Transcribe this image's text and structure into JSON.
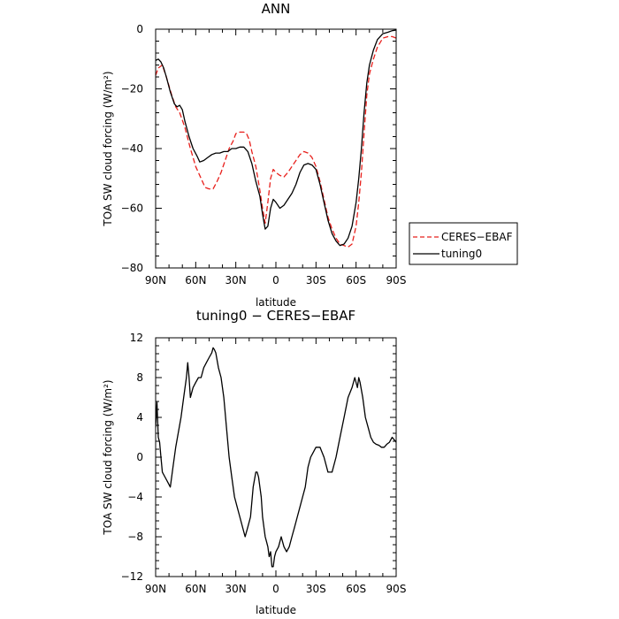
{
  "chart_data": [
    {
      "type": "line",
      "title": "ANN",
      "xlabel": "latitude",
      "ylabel": "TOA SW cloud forcing (W/m²)",
      "xlim": [
        90,
        -90
      ],
      "ylim": [
        -80,
        0
      ],
      "x_ticks": [
        90,
        60,
        30,
        0,
        -30,
        -60,
        -90
      ],
      "x_tick_labels": [
        "90N",
        "60N",
        "30N",
        "0",
        "30S",
        "60S",
        "90S"
      ],
      "y_ticks": [
        -80,
        -60,
        -40,
        -20,
        0
      ],
      "y_tick_labels": [
        "−80",
        "−60",
        "−40",
        "−20",
        "0"
      ],
      "grid": false,
      "legend_position": "outside-right-bottom",
      "series": [
        {
          "name": "CERES−EBAF",
          "color": "#e8201c",
          "dash": "dashed",
          "points": [
            [
              90,
              -15.5
            ],
            [
              88,
              -13
            ],
            [
              85,
              -12
            ],
            [
              82,
              -16
            ],
            [
              78,
              -22
            ],
            [
              75,
              -26
            ],
            [
              72,
              -28
            ],
            [
              68,
              -33
            ],
            [
              64,
              -40
            ],
            [
              60,
              -46
            ],
            [
              56,
              -50
            ],
            [
              53,
              -53
            ],
            [
              50,
              -53.5
            ],
            [
              47,
              -53.5
            ],
            [
              44,
              -51
            ],
            [
              41,
              -48
            ],
            [
              38,
              -44
            ],
            [
              35,
              -40
            ],
            [
              32,
              -37.5
            ],
            [
              30,
              -35
            ],
            [
              27,
              -34.5
            ],
            [
              24,
              -34.5
            ],
            [
              22,
              -35
            ],
            [
              20,
              -37
            ],
            [
              18,
              -41
            ],
            [
              15,
              -46
            ],
            [
              12,
              -54
            ],
            [
              10,
              -60
            ],
            [
              8,
              -65
            ],
            [
              6,
              -58
            ],
            [
              4,
              -50
            ],
            [
              2,
              -47
            ],
            [
              0,
              -48
            ],
            [
              -3,
              -49
            ],
            [
              -6,
              -49.5
            ],
            [
              -9,
              -48
            ],
            [
              -12,
              -46
            ],
            [
              -15,
              -44
            ],
            [
              -18,
              -42
            ],
            [
              -21,
              -41
            ],
            [
              -24,
              -41.5
            ],
            [
              -27,
              -43
            ],
            [
              -30,
              -46
            ],
            [
              -33,
              -51
            ],
            [
              -36,
              -57
            ],
            [
              -39,
              -63
            ],
            [
              -42,
              -67
            ],
            [
              -45,
              -70
            ],
            [
              -48,
              -72
            ],
            [
              -51,
              -72.5
            ],
            [
              -54,
              -73
            ],
            [
              -57,
              -72
            ],
            [
              -60,
              -66
            ],
            [
              -62,
              -58
            ],
            [
              -64,
              -48
            ],
            [
              -66,
              -35
            ],
            [
              -68,
              -22
            ],
            [
              -70,
              -15
            ],
            [
              -73,
              -10
            ],
            [
              -76,
              -6
            ],
            [
              -80,
              -3
            ],
            [
              -84,
              -2.5
            ],
            [
              -87,
              -2.5
            ],
            [
              -90,
              -3
            ]
          ]
        },
        {
          "name": "tuning0",
          "color": "#000000",
          "dash": "solid",
          "points": [
            [
              90,
              -10.5
            ],
            [
              88,
              -10
            ],
            [
              86,
              -11
            ],
            [
              84,
              -13
            ],
            [
              82,
              -16
            ],
            [
              79,
              -21
            ],
            [
              76,
              -25
            ],
            [
              74,
              -26
            ],
            [
              72,
              -25.5
            ],
            [
              70,
              -27
            ],
            [
              68,
              -31
            ],
            [
              65,
              -36
            ],
            [
              62,
              -40
            ],
            [
              59,
              -42.5
            ],
            [
              57,
              -44.5
            ],
            [
              54,
              -44
            ],
            [
              51,
              -43
            ],
            [
              48,
              -42
            ],
            [
              45,
              -41.5
            ],
            [
              42,
              -41.5
            ],
            [
              39,
              -41
            ],
            [
              36,
              -41
            ],
            [
              33,
              -40
            ],
            [
              30,
              -40
            ],
            [
              27,
              -39.5
            ],
            [
              24,
              -39.5
            ],
            [
              21,
              -41
            ],
            [
              18,
              -45
            ],
            [
              15,
              -51
            ],
            [
              12,
              -56
            ],
            [
              10,
              -62
            ],
            [
              8,
              -67
            ],
            [
              6,
              -66
            ],
            [
              4,
              -60
            ],
            [
              2,
              -57
            ],
            [
              0,
              -58
            ],
            [
              -3,
              -60
            ],
            [
              -6,
              -59
            ],
            [
              -9,
              -57
            ],
            [
              -12,
              -55
            ],
            [
              -15,
              -52
            ],
            [
              -18,
              -48
            ],
            [
              -21,
              -45.5
            ],
            [
              -24,
              -45
            ],
            [
              -27,
              -45.5
            ],
            [
              -30,
              -47
            ],
            [
              -33,
              -52
            ],
            [
              -36,
              -58
            ],
            [
              -39,
              -64
            ],
            [
              -42,
              -68.5
            ],
            [
              -45,
              -71
            ],
            [
              -48,
              -72.5
            ],
            [
              -51,
              -72
            ],
            [
              -54,
              -70
            ],
            [
              -57,
              -66
            ],
            [
              -60,
              -58
            ],
            [
              -62,
              -50
            ],
            [
              -64,
              -40
            ],
            [
              -66,
              -28
            ],
            [
              -68,
              -18
            ],
            [
              -70,
              -12
            ],
            [
              -73,
              -7
            ],
            [
              -76,
              -3.5
            ],
            [
              -80,
              -1.5
            ],
            [
              -84,
              -1
            ],
            [
              -87,
              -0.5
            ],
            [
              -90,
              -0.3
            ]
          ]
        }
      ]
    },
    {
      "type": "line",
      "title": "tuning0 − CERES−EBAF",
      "xlabel": "latitude",
      "ylabel": "TOA SW cloud forcing (W/m²)",
      "xlim": [
        90,
        -90
      ],
      "ylim": [
        -12,
        12
      ],
      "x_ticks": [
        90,
        60,
        30,
        0,
        -30,
        -60,
        -90
      ],
      "x_tick_labels": [
        "90N",
        "60N",
        "30N",
        "0",
        "30S",
        "60S",
        "90S"
      ],
      "y_ticks": [
        -12,
        -8,
        -4,
        0,
        4,
        8,
        12
      ],
      "y_tick_labels": [
        "−12",
        "−8",
        "−4",
        "0",
        "4",
        "8",
        "12"
      ],
      "grid": false,
      "series": [
        {
          "color": "#000000",
          "dash": "solid",
          "points": [
            [
              90,
              3
            ],
            [
              89,
              5.5
            ],
            [
              88,
              2
            ],
            [
              87,
              1.5
            ],
            [
              86,
              0
            ],
            [
              85,
              -1.5
            ],
            [
              83,
              -2
            ],
            [
              81,
              -2.5
            ],
            [
              79,
              -3
            ],
            [
              77,
              -1
            ],
            [
              75,
              1
            ],
            [
              73,
              2.5
            ],
            [
              71,
              4
            ],
            [
              69,
              6
            ],
            [
              67,
              8
            ],
            [
              66,
              9.5
            ],
            [
              65,
              8
            ],
            [
              64,
              6
            ],
            [
              62,
              7
            ],
            [
              60,
              7.5
            ],
            [
              58,
              8
            ],
            [
              56,
              8
            ],
            [
              54,
              9
            ],
            [
              52,
              9.5
            ],
            [
              50,
              10
            ],
            [
              48,
              10.5
            ],
            [
              47,
              11
            ],
            [
              46,
              10.8
            ],
            [
              45,
              10.5
            ],
            [
              43,
              9
            ],
            [
              41,
              8
            ],
            [
              39,
              6
            ],
            [
              37,
              3
            ],
            [
              35,
              0
            ],
            [
              33,
              -2
            ],
            [
              31,
              -4
            ],
            [
              29,
              -5
            ],
            [
              27,
              -6
            ],
            [
              25,
              -7
            ],
            [
              23,
              -8
            ],
            [
              21,
              -7
            ],
            [
              19,
              -6
            ],
            [
              17,
              -3
            ],
            [
              15,
              -1.5
            ],
            [
              14,
              -1.5
            ],
            [
              13,
              -2
            ],
            [
              12,
              -3
            ],
            [
              11,
              -4
            ],
            [
              10,
              -6
            ],
            [
              9,
              -7
            ],
            [
              8,
              -8
            ],
            [
              7,
              -8.5
            ],
            [
              6,
              -9
            ],
            [
              5,
              -10
            ],
            [
              4,
              -9.5
            ],
            [
              3,
              -11
            ],
            [
              2,
              -11
            ],
            [
              1,
              -10
            ],
            [
              0,
              -9.5
            ],
            [
              -2,
              -9
            ],
            [
              -4,
              -8
            ],
            [
              -6,
              -9
            ],
            [
              -8,
              -9.5
            ],
            [
              -10,
              -9
            ],
            [
              -12,
              -8
            ],
            [
              -14,
              -7
            ],
            [
              -16,
              -6
            ],
            [
              -18,
              -5
            ],
            [
              -20,
              -4
            ],
            [
              -22,
              -3
            ],
            [
              -24,
              -1
            ],
            [
              -26,
              0
            ],
            [
              -28,
              0.5
            ],
            [
              -30,
              1
            ],
            [
              -33,
              1
            ],
            [
              -36,
              0
            ],
            [
              -39,
              -1.5
            ],
            [
              -42,
              -1.5
            ],
            [
              -45,
              0
            ],
            [
              -48,
              2
            ],
            [
              -51,
              4
            ],
            [
              -54,
              6
            ],
            [
              -57,
              7
            ],
            [
              -59,
              8
            ],
            [
              -61,
              7
            ],
            [
              -62,
              8
            ],
            [
              -63,
              7.5
            ],
            [
              -65,
              6
            ],
            [
              -67,
              4
            ],
            [
              -69,
              3
            ],
            [
              -71,
              2
            ],
            [
              -73,
              1.5
            ],
            [
              -75,
              1.3
            ],
            [
              -77,
              1.2
            ],
            [
              -79,
              1
            ],
            [
              -81,
              1
            ],
            [
              -83,
              1.3
            ],
            [
              -85,
              1.5
            ],
            [
              -87,
              2
            ],
            [
              -90,
              1.5
            ]
          ]
        }
      ]
    }
  ]
}
